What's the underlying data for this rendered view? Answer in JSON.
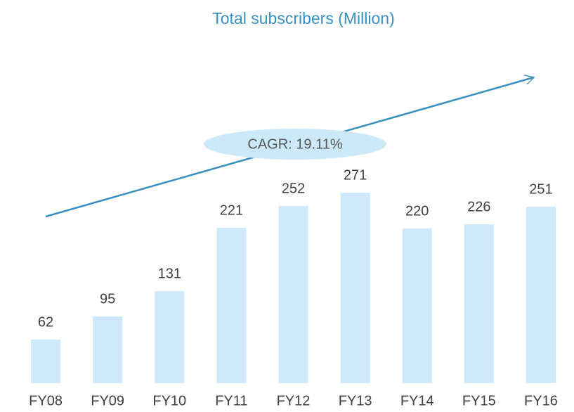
{
  "chart_data": {
    "type": "bar",
    "title": "Total subscribers (Million)",
    "categories": [
      "FY08",
      "FY09",
      "FY10",
      "FY11",
      "FY12",
      "FY13",
      "FY14",
      "FY15",
      "FY16"
    ],
    "values": [
      62,
      95,
      131,
      221,
      252,
      271,
      220,
      226,
      251
    ],
    "color": "#cde9fb",
    "ylim": [
      0,
      300
    ],
    "annotation": "CAGR: 19.11%"
  }
}
